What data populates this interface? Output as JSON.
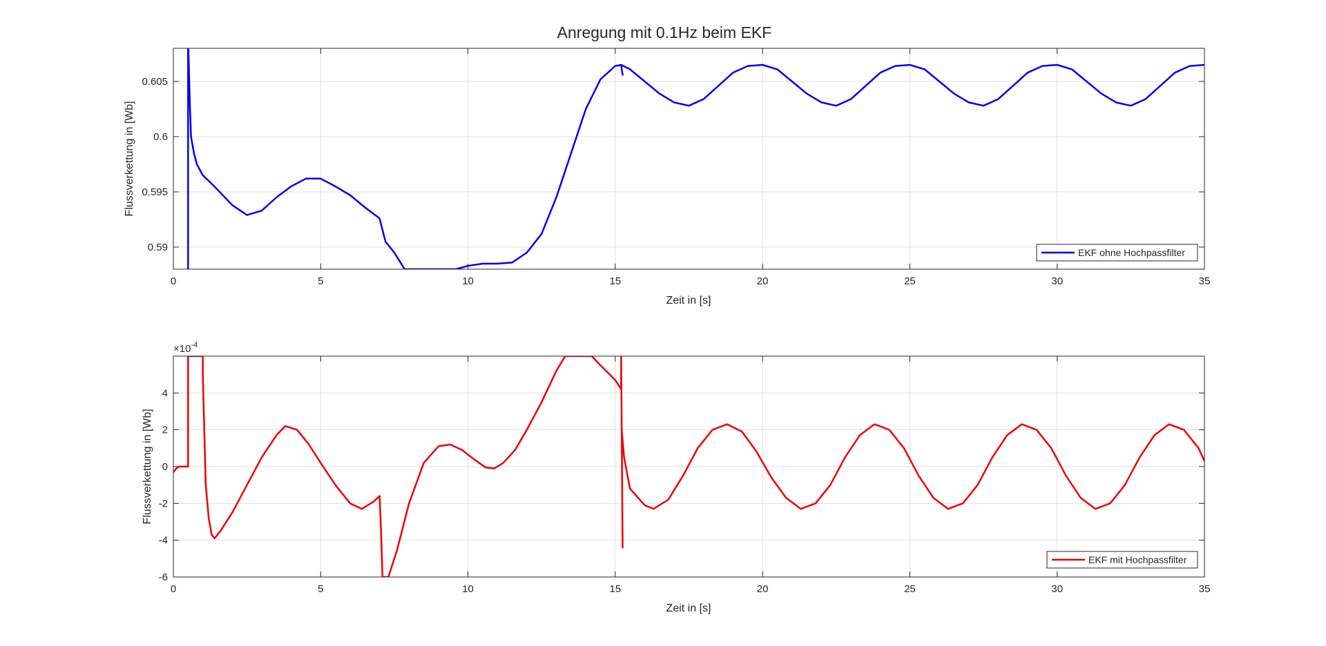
{
  "figure_title": "Anregung mit 0.1Hz beim EKF",
  "chart_data": [
    {
      "type": "line",
      "title": "Anregung mit 0.1Hz beim EKF",
      "xlabel": "Zeit in [s]",
      "ylabel": "Flussverkettung in [Wb]",
      "xlim": [
        0,
        35
      ],
      "ylim": [
        0.588,
        0.608
      ],
      "xticks": [
        0,
        5,
        10,
        15,
        20,
        25,
        30,
        35
      ],
      "xtick_labels": [
        "0",
        "5",
        "10",
        "15",
        "20",
        "25",
        "30",
        "35"
      ],
      "yticks": [
        0.59,
        0.595,
        0.6,
        0.605
      ],
      "ytick_labels": [
        "0.59",
        "0.595",
        "0.6",
        "0.605"
      ],
      "grid": true,
      "legend_position": "bottom-right",
      "series": [
        {
          "name": "EKF ohne Hochpassfilter",
          "color": "#0000ee",
          "x": [
            0.5,
            0.5,
            0.51,
            0.53,
            0.56,
            0.6,
            0.7,
            0.8,
            1.0,
            1.2,
            1.5,
            2.0,
            2.5,
            3.0,
            3.5,
            4.0,
            4.5,
            5.0,
            5.5,
            6.0,
            6.5,
            7.0,
            7.2,
            7.5,
            7.85,
            9.6,
            10.0,
            10.5,
            11.0,
            11.5,
            12.0,
            12.5,
            13.0,
            13.5,
            14.0,
            14.5,
            15.0,
            15.2,
            15.25,
            15.2,
            15.5,
            16.0,
            16.5,
            17.0,
            17.5,
            18.0,
            18.5,
            19.0,
            19.5,
            20.0,
            20.5,
            21.0,
            21.5,
            22.0,
            22.5,
            23.0,
            23.5,
            24.0,
            24.5,
            25.0,
            25.5,
            26.0,
            26.5,
            27.0,
            27.5,
            28.0,
            28.5,
            29.0,
            29.5,
            30.0,
            30.5,
            31.0,
            31.5,
            32.0,
            32.5,
            33.0,
            33.5,
            34.0,
            34.5,
            35.0
          ],
          "y": [
            0.588,
            0.608,
            0.608,
            0.606,
            0.603,
            0.6,
            0.5985,
            0.5975,
            0.5965,
            0.596,
            0.5952,
            0.5938,
            0.5929,
            0.5933,
            0.5945,
            0.5955,
            0.5962,
            0.5962,
            0.5955,
            0.5947,
            0.5936,
            0.5926,
            0.5905,
            0.5895,
            0.588,
            0.588,
            0.5883,
            0.5885,
            0.5885,
            0.5886,
            0.5895,
            0.5912,
            0.5945,
            0.5985,
            0.6025,
            0.6052,
            0.6064,
            0.6065,
            0.6056,
            0.6065,
            0.6061,
            0.605,
            0.6039,
            0.6031,
            0.6028,
            0.6034,
            0.6046,
            0.6058,
            0.6064,
            0.6065,
            0.6061,
            0.605,
            0.6039,
            0.6031,
            0.6028,
            0.6034,
            0.6046,
            0.6058,
            0.6064,
            0.6065,
            0.6061,
            0.605,
            0.6039,
            0.6031,
            0.6028,
            0.6034,
            0.6046,
            0.6058,
            0.6064,
            0.6065,
            0.6061,
            0.605,
            0.6039,
            0.6031,
            0.6028,
            0.6034,
            0.6046,
            0.6058,
            0.6064,
            0.6065
          ]
        }
      ]
    },
    {
      "type": "line",
      "title": "",
      "xlabel": "Zeit in [s]",
      "ylabel": "Flussverkettung in [Wb]",
      "y_exponent_label": "×10",
      "y_exponent": "-4",
      "xlim": [
        0,
        35
      ],
      "ylim": [
        -6,
        6
      ],
      "xticks": [
        0,
        5,
        10,
        15,
        20,
        25,
        30,
        35
      ],
      "xtick_labels": [
        "0",
        "5",
        "10",
        "15",
        "20",
        "25",
        "30",
        "35"
      ],
      "yticks": [
        -6,
        -4,
        -2,
        0,
        2,
        4
      ],
      "ytick_labels": [
        "-6",
        "-4",
        "-2",
        "0",
        "2",
        "4"
      ],
      "grid": true,
      "legend_position": "bottom-right",
      "series": [
        {
          "name": "EKF mit Hochpassfilter",
          "color": "#ee0000",
          "x": [
            0.0,
            0.1,
            0.2,
            0.3,
            0.5,
            0.5,
            0.52,
            0.5,
            0.55,
            1.0,
            1.0,
            1.05,
            1.1,
            1.2,
            1.3,
            1.4,
            1.6,
            2.0,
            2.5,
            3.0,
            3.5,
            3.8,
            4.2,
            4.6,
            5.0,
            5.5,
            6.0,
            6.4,
            6.8,
            7.0,
            7.05,
            7.1,
            7.2,
            7.3,
            7.6,
            8.0,
            8.5,
            9.0,
            9.4,
            9.8,
            10.2,
            10.6,
            10.9,
            11.2,
            11.6,
            12.0,
            12.5,
            13.0,
            13.3,
            14.2,
            14.5,
            15.0,
            15.2,
            15.2,
            15.25,
            15.22,
            15.3,
            15.5,
            16.0,
            16.3,
            16.8,
            17.3,
            17.8,
            18.3,
            18.8,
            19.3,
            19.8,
            20.3,
            20.8,
            21.3,
            21.8,
            22.3,
            22.8,
            23.3,
            23.8,
            24.3,
            24.8,
            25.3,
            25.8,
            26.3,
            26.8,
            27.3,
            27.8,
            28.3,
            28.8,
            29.3,
            29.8,
            30.3,
            30.8,
            31.3,
            31.8,
            32.3,
            32.8,
            33.3,
            33.8,
            34.3,
            34.8,
            35.0
          ],
          "y": [
            -0.3,
            -0.1,
            0.0,
            0.0,
            0.0,
            6.0,
            6.0,
            6.0,
            6.0,
            6.0,
            5.0,
            2.0,
            -1.0,
            -2.8,
            -3.7,
            -3.9,
            -3.5,
            -2.5,
            -1.0,
            0.5,
            1.7,
            2.2,
            2.0,
            1.2,
            0.2,
            -1.0,
            -2.0,
            -2.3,
            -1.9,
            -1.6,
            -3.5,
            -6.0,
            -6.0,
            -6.0,
            -4.5,
            -2.0,
            0.2,
            1.1,
            1.2,
            0.9,
            0.4,
            -0.05,
            -0.1,
            0.2,
            0.9,
            2.0,
            3.5,
            5.2,
            6.0,
            6.0,
            5.5,
            4.7,
            4.2,
            6.0,
            -4.4,
            2.0,
            0.5,
            -1.2,
            -2.1,
            -2.3,
            -1.8,
            -0.5,
            1.0,
            2.0,
            2.3,
            1.9,
            0.8,
            -0.6,
            -1.7,
            -2.3,
            -2.0,
            -1.0,
            0.5,
            1.7,
            2.3,
            2.0,
            1.0,
            -0.5,
            -1.7,
            -2.3,
            -2.0,
            -1.0,
            0.5,
            1.7,
            2.3,
            2.0,
            1.0,
            -0.5,
            -1.7,
            -2.3,
            -2.0,
            -1.0,
            0.5,
            1.7,
            2.3,
            2.0,
            1.0,
            0.3
          ]
        }
      ]
    }
  ]
}
